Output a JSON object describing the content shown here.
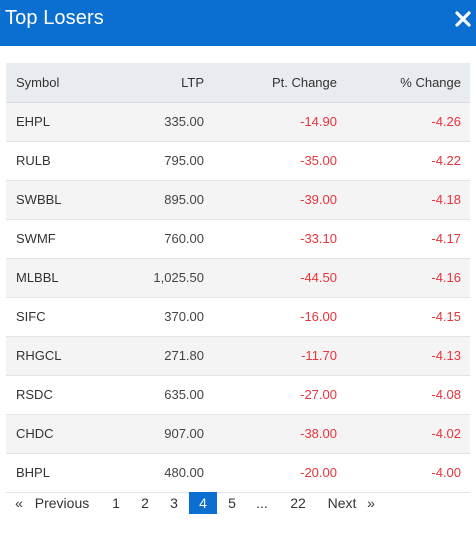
{
  "header": {
    "title": "Top Losers",
    "close_icon": "close-icon"
  },
  "table": {
    "columns": [
      "Symbol",
      "LTP",
      "Pt. Change",
      "% Change"
    ],
    "rows": [
      {
        "symbol": "EHPL",
        "ltp": "335.00",
        "pt_change": "-14.90",
        "pct_change": "-4.26"
      },
      {
        "symbol": "RULB",
        "ltp": "795.00",
        "pt_change": "-35.00",
        "pct_change": "-4.22"
      },
      {
        "symbol": "SWBBL",
        "ltp": "895.00",
        "pt_change": "-39.00",
        "pct_change": "-4.18"
      },
      {
        "symbol": "SWMF",
        "ltp": "760.00",
        "pt_change": "-33.10",
        "pct_change": "-4.17"
      },
      {
        "symbol": "MLBBL",
        "ltp": "1,025.50",
        "pt_change": "-44.50",
        "pct_change": "-4.16"
      },
      {
        "symbol": "SIFC",
        "ltp": "370.00",
        "pt_change": "-16.00",
        "pct_change": "-4.15"
      },
      {
        "symbol": "RHGCL",
        "ltp": "271.80",
        "pt_change": "-11.70",
        "pct_change": "-4.13"
      },
      {
        "symbol": "RSDC",
        "ltp": "635.00",
        "pt_change": "-27.00",
        "pct_change": "-4.08"
      },
      {
        "symbol": "CHDC",
        "ltp": "907.00",
        "pt_change": "-38.00",
        "pct_change": "-4.02"
      },
      {
        "symbol": "BHPL",
        "ltp": "480.00",
        "pt_change": "-20.00",
        "pct_change": "-4.00"
      }
    ]
  },
  "pagination": {
    "prev_symbol": "«",
    "prev_label": "Previous",
    "pages": [
      "1",
      "2",
      "3",
      "4",
      "5",
      "...",
      "22"
    ],
    "active_page": "4",
    "next_label": "Next",
    "next_symbol": "»"
  },
  "colors": {
    "accent": "#0a6fd0",
    "negative": "#e8333a",
    "header_row": "#e8ebef",
    "stripe": "#f4f4f5"
  }
}
